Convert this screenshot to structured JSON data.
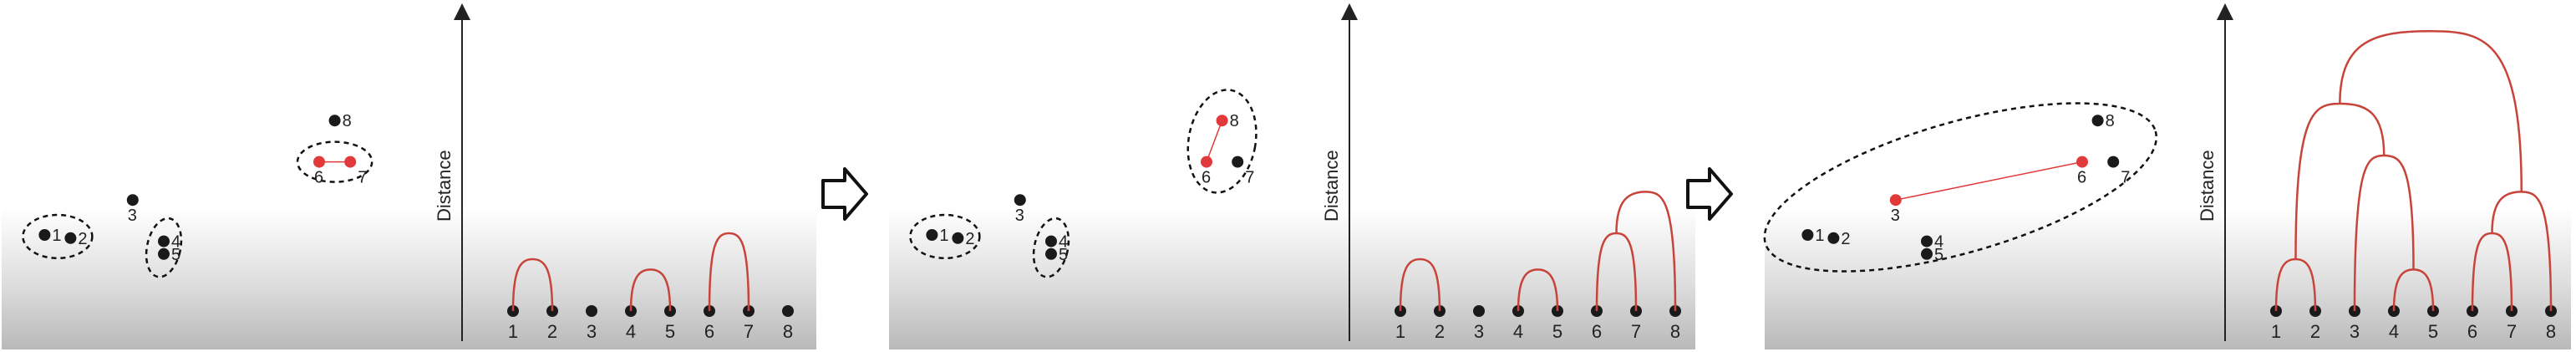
{
  "panels": [
    {
      "scatter_points": [
        {
          "id": "1",
          "x": 0.7,
          "y": 3.0
        },
        {
          "id": "2",
          "x": 1.2,
          "y": 2.9
        },
        {
          "id": "3",
          "x": 2.4,
          "y": 4.1
        },
        {
          "id": "4",
          "x": 3.0,
          "y": 2.8
        },
        {
          "id": "5",
          "x": 3.0,
          "y": 2.4
        },
        {
          "id": "6",
          "x": 6.0,
          "y": 5.3
        },
        {
          "id": "7",
          "x": 6.6,
          "y": 5.3
        },
        {
          "id": "8",
          "x": 6.3,
          "y": 6.6
        }
      ],
      "highlighted": [
        "6",
        "7"
      ],
      "clusters": [
        [
          "1",
          "2"
        ],
        [
          "4",
          "5"
        ],
        [
          "6",
          "7"
        ]
      ],
      "dendrogram": {
        "axis_label": "Distance",
        "leaves": [
          "1",
          "2",
          "3",
          "4",
          "5",
          "6",
          "7",
          "8"
        ],
        "merges": [
          {
            "left": "1",
            "right": "2",
            "height": 1.0
          },
          {
            "left": "4",
            "right": "5",
            "height": 0.8
          },
          {
            "left": "6",
            "right": "7",
            "height": 1.5
          }
        ]
      }
    },
    {
      "scatter_points": [
        {
          "id": "1",
          "x": 0.7,
          "y": 3.0
        },
        {
          "id": "2",
          "x": 1.2,
          "y": 2.9
        },
        {
          "id": "3",
          "x": 2.4,
          "y": 4.1
        },
        {
          "id": "4",
          "x": 3.0,
          "y": 2.8
        },
        {
          "id": "5",
          "x": 3.0,
          "y": 2.4
        },
        {
          "id": "6",
          "x": 6.0,
          "y": 5.3
        },
        {
          "id": "7",
          "x": 6.6,
          "y": 5.3
        },
        {
          "id": "8",
          "x": 6.3,
          "y": 6.6
        }
      ],
      "highlighted": [
        "6",
        "8"
      ],
      "clusters": [
        [
          "1",
          "2"
        ],
        [
          "4",
          "5"
        ],
        [
          "6",
          "7",
          "8"
        ]
      ],
      "dendrogram": {
        "axis_label": "Distance",
        "leaves": [
          "1",
          "2",
          "3",
          "4",
          "5",
          "6",
          "7",
          "8"
        ],
        "merges": [
          {
            "left": "1",
            "right": "2",
            "height": 1.0
          },
          {
            "left": "4",
            "right": "5",
            "height": 0.8
          },
          {
            "left": "6",
            "right": "7",
            "height": 1.5
          },
          {
            "left": "67",
            "right": "8",
            "height": 2.3
          }
        ]
      }
    },
    {
      "scatter_points": [
        {
          "id": "1",
          "x": 0.7,
          "y": 3.0
        },
        {
          "id": "2",
          "x": 1.2,
          "y": 2.9
        },
        {
          "id": "3",
          "x": 2.4,
          "y": 4.1
        },
        {
          "id": "4",
          "x": 3.0,
          "y": 2.8
        },
        {
          "id": "5",
          "x": 3.0,
          "y": 2.4
        },
        {
          "id": "6",
          "x": 6.0,
          "y": 5.3
        },
        {
          "id": "7",
          "x": 6.6,
          "y": 5.3
        },
        {
          "id": "8",
          "x": 6.3,
          "y": 6.6
        }
      ],
      "highlighted": [
        "3",
        "6"
      ],
      "clusters": [
        [
          "1",
          "2",
          "3",
          "4",
          "5",
          "6",
          "7",
          "8"
        ]
      ],
      "dendrogram": {
        "axis_label": "Distance",
        "leaves": [
          "1",
          "2",
          "3",
          "4",
          "5",
          "6",
          "7",
          "8"
        ],
        "merges": [
          {
            "left": "1",
            "right": "2",
            "height": 1.0
          },
          {
            "left": "4",
            "right": "5",
            "height": 0.8
          },
          {
            "left": "6",
            "right": "7",
            "height": 1.5
          },
          {
            "left": "67",
            "right": "8",
            "height": 2.3
          },
          {
            "left": "3",
            "right": "45",
            "height": 3.0
          },
          {
            "left": "12",
            "right": "345",
            "height": 4.0
          },
          {
            "left": "12345",
            "right": "678",
            "height": 5.4
          }
        ]
      }
    }
  ],
  "colors": {
    "point": "#1a1a1a",
    "highlight": "#e23a3a",
    "branch": "#c8443a",
    "background_top": "#ffffff",
    "background_bottom": "#bdbdbd"
  },
  "icons": {
    "step_arrow": "right-arrow-icon"
  }
}
